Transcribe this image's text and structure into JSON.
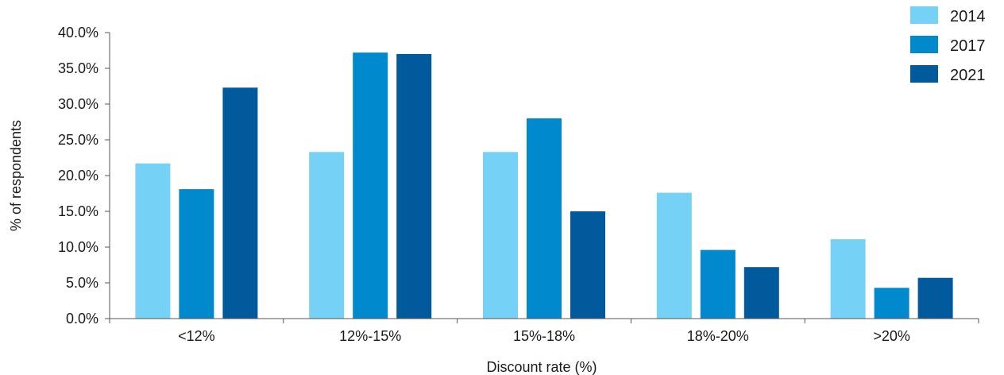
{
  "chart_data": {
    "type": "bar",
    "title": "",
    "xlabel": "Discount rate (%)",
    "ylabel": "% of respondents",
    "categories": [
      "<12%",
      "12%-15%",
      "15%-18%",
      "18%-20%",
      ">20%"
    ],
    "ylim": [
      0,
      40
    ],
    "yticks": [
      "0.0%",
      "5.0%",
      "10.0%",
      "15.0%",
      "20.0%",
      "25.0%",
      "30.0%",
      "35.0%",
      "40.0%"
    ],
    "legend_position": "top-right",
    "grid": false,
    "series": [
      {
        "name": "2014",
        "color": "#75D1F5",
        "values": [
          21.7,
          23.3,
          23.3,
          17.6,
          11.1
        ]
      },
      {
        "name": "2017",
        "color": "#0089CC",
        "values": [
          18.1,
          37.2,
          28.0,
          9.6,
          4.3
        ]
      },
      {
        "name": "2021",
        "color": "#005A9C",
        "values": [
          32.3,
          37.0,
          15.0,
          7.2,
          5.7
        ]
      }
    ]
  }
}
